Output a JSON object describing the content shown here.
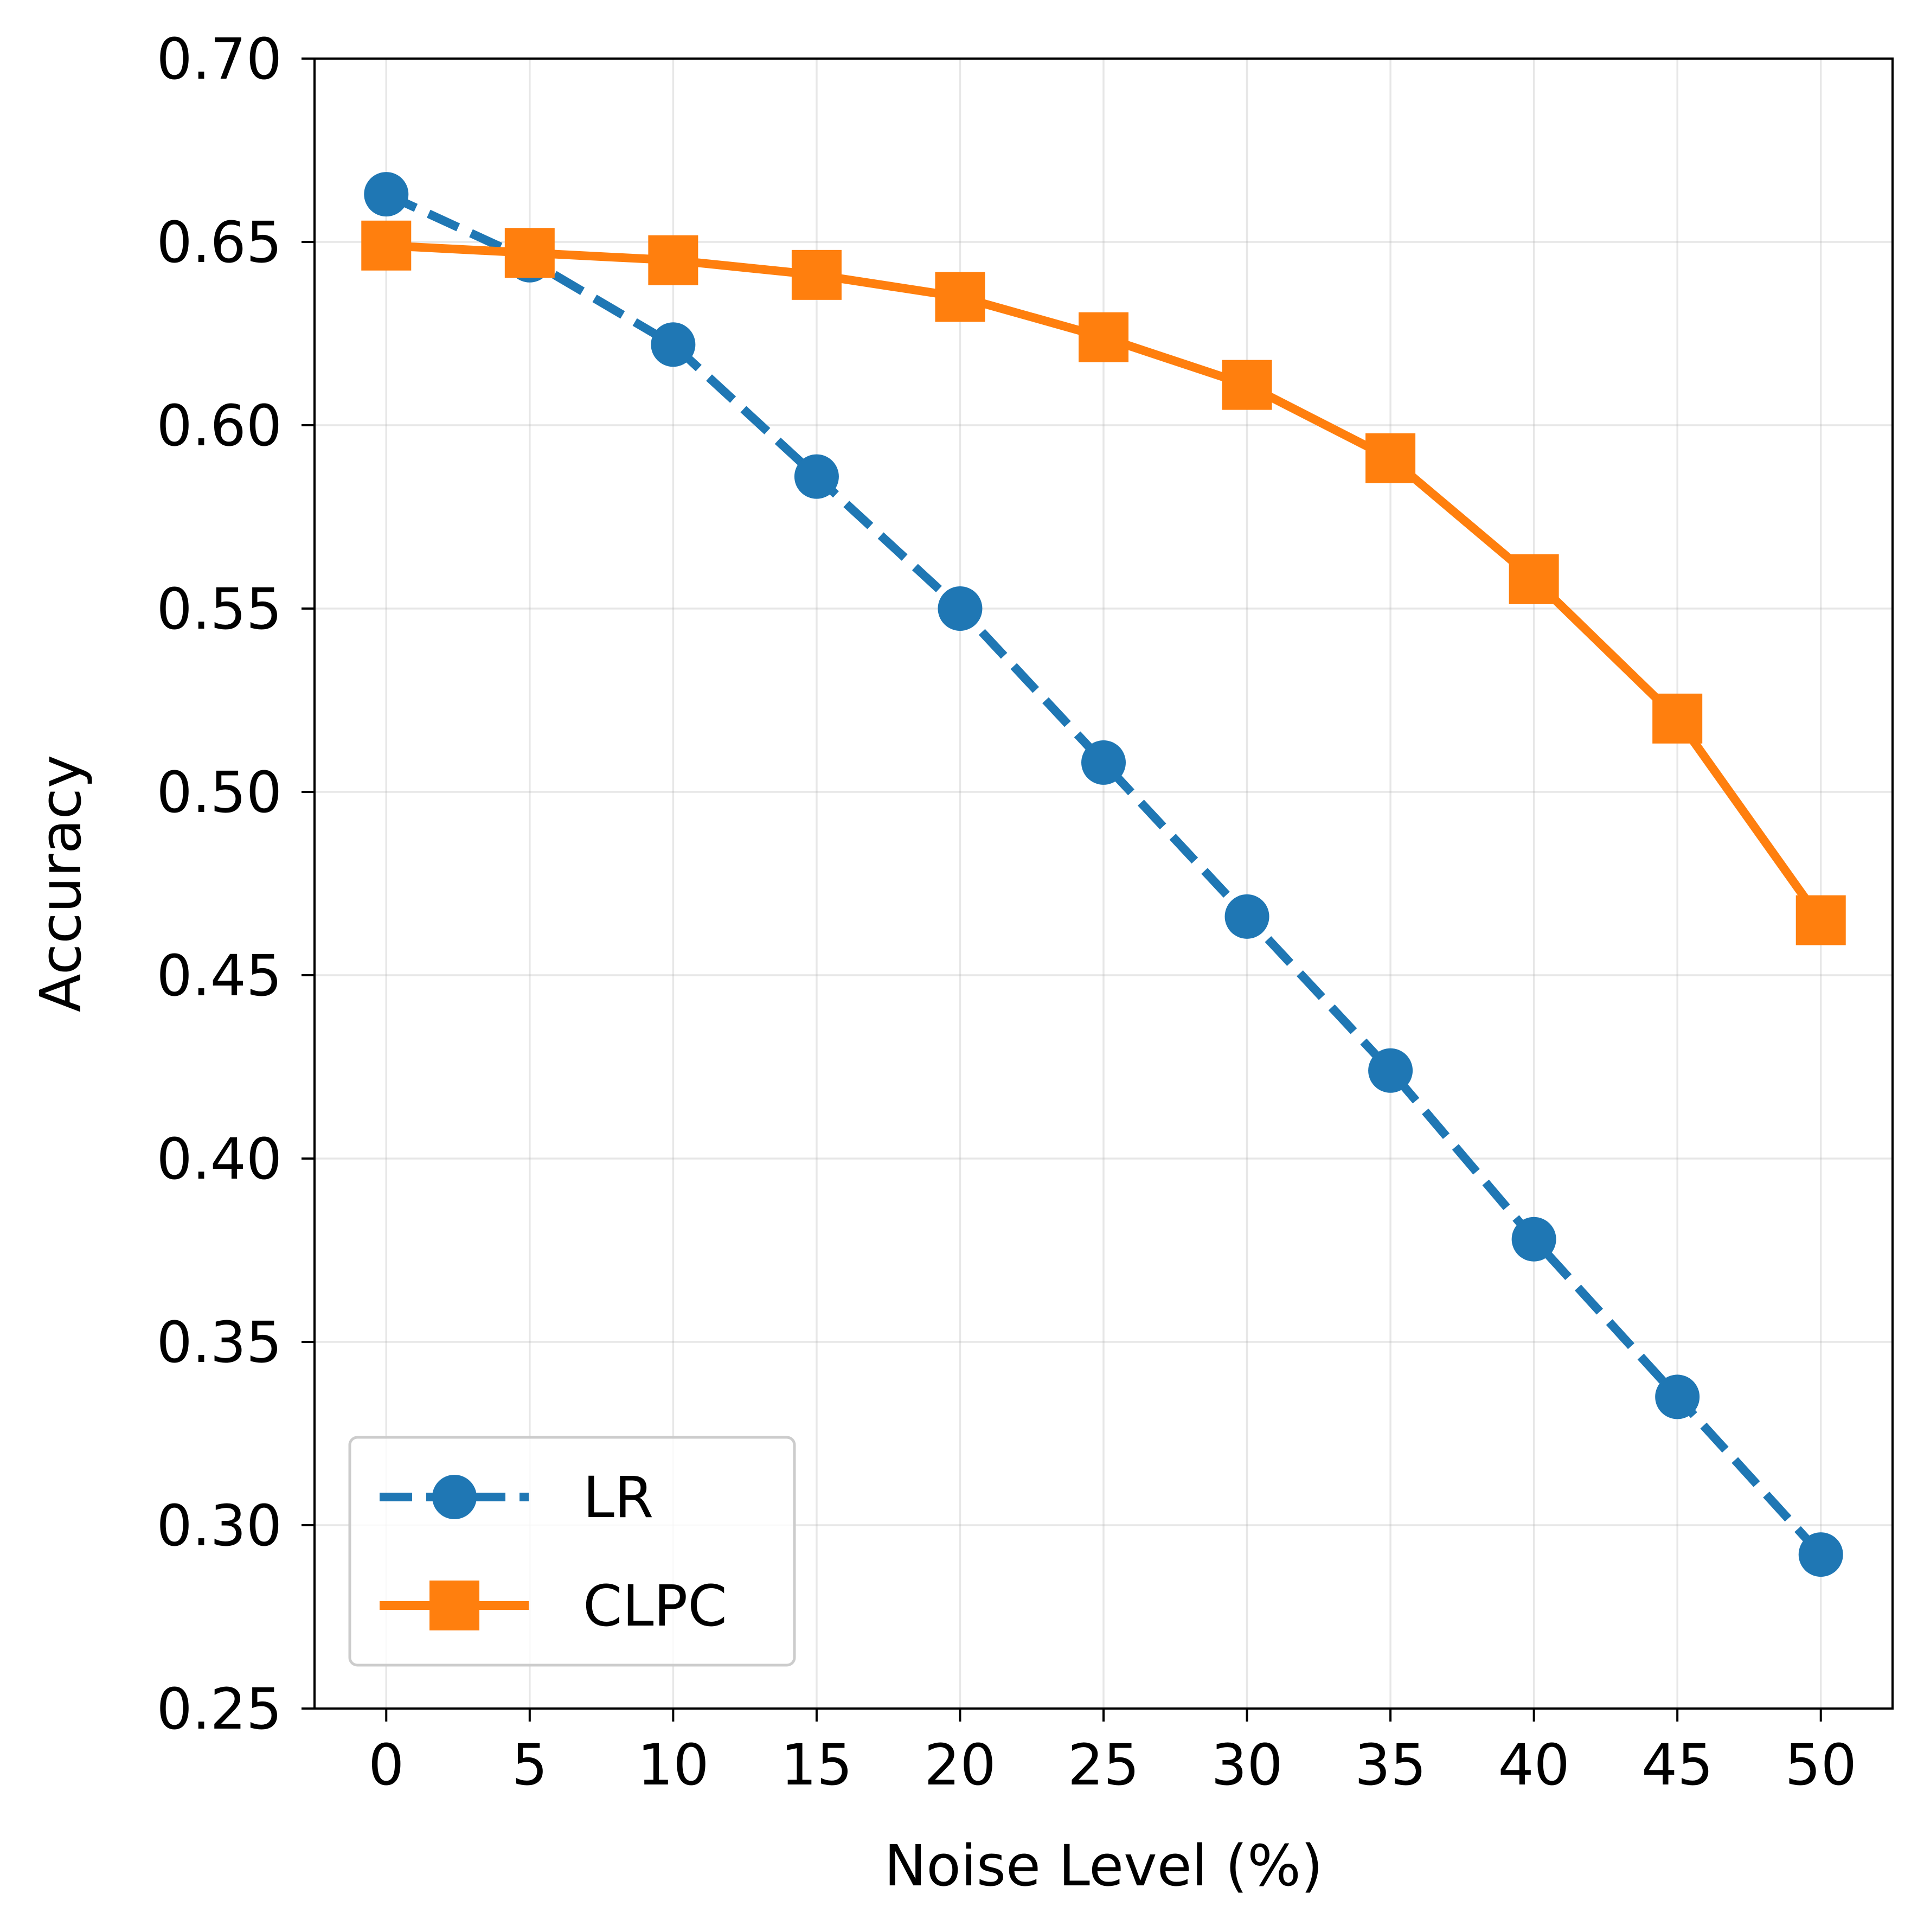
{
  "chart_data": {
    "type": "line",
    "title": "",
    "xlabel": "Noise Level (%)",
    "ylabel": "Accuracy",
    "x": [
      0,
      5,
      10,
      15,
      20,
      25,
      30,
      35,
      40,
      45,
      50
    ],
    "xticks": [
      "0",
      "5",
      "10",
      "15",
      "20",
      "25",
      "30",
      "35",
      "40",
      "45",
      "50"
    ],
    "yticks": [
      "0.25",
      "0.30",
      "0.35",
      "0.40",
      "0.45",
      "0.50",
      "0.55",
      "0.60",
      "0.65",
      "0.70"
    ],
    "xlim": [
      -2.5,
      52.5
    ],
    "ylim": [
      0.25,
      0.7
    ],
    "grid": true,
    "legend_position": "lower-left",
    "series": [
      {
        "name": "LR",
        "color": "#1f77b4",
        "linestyle": "dashed",
        "marker": "circle",
        "values": [
          0.663,
          0.645,
          0.622,
          0.586,
          0.55,
          0.508,
          0.466,
          0.424,
          0.378,
          0.335,
          0.292
        ]
      },
      {
        "name": "CLPC",
        "color": "#ff7f0e",
        "linestyle": "solid",
        "marker": "square",
        "values": [
          0.649,
          0.647,
          0.645,
          0.641,
          0.635,
          0.624,
          0.611,
          0.591,
          0.558,
          0.52,
          0.465
        ]
      }
    ]
  }
}
